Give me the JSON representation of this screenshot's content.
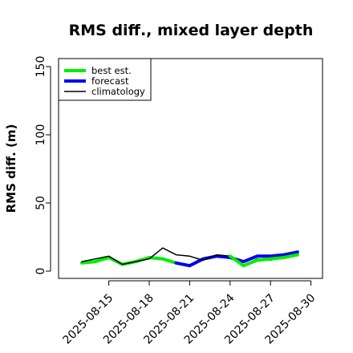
{
  "chart_data": {
    "type": "line",
    "title": "RMS diff., mixed layer depth",
    "xlabel": "",
    "ylabel": "RMS diff. (m)",
    "ylim": [
      0,
      150
    ],
    "yticks": [
      0,
      50,
      100,
      150
    ],
    "x": [
      "2025-08-13",
      "2025-08-14",
      "2025-08-15",
      "2025-08-16",
      "2025-08-17",
      "2025-08-18",
      "2025-08-19",
      "2025-08-20",
      "2025-08-21",
      "2025-08-22",
      "2025-08-23",
      "2025-08-24",
      "2025-08-25",
      "2025-08-26",
      "2025-08-27",
      "2025-08-28",
      "2025-08-29",
      "2025-08-30"
    ],
    "xticks": [
      "2025-08-15",
      "2025-08-18",
      "2025-08-21",
      "2025-08-24",
      "2025-08-27",
      "2025-08-30"
    ],
    "highlight_tick": "2025-08-21",
    "highlight_color": "#228B22",
    "legend_position": "top-left",
    "grid": false,
    "series": [
      {
        "name": "best est.",
        "color": "#00ee00",
        "width": 4,
        "values": [
          6,
          7,
          10,
          5,
          7,
          10,
          9,
          6,
          null,
          null,
          null,
          null,
          null,
          null,
          null,
          null,
          null,
          null
        ]
      },
      {
        "name": "forecast",
        "color": "#0000ee",
        "width": 4,
        "values": [
          null,
          null,
          null,
          null,
          null,
          null,
          null,
          6,
          4,
          9,
          11,
          10,
          7,
          11,
          11,
          12,
          14,
          null
        ]
      },
      {
        "name": "climatology",
        "color": "#000000",
        "width": 1.5,
        "values": [
          7,
          9,
          11,
          5,
          7,
          9,
          17,
          12,
          11,
          8,
          12,
          11,
          4,
          9,
          8,
          11,
          12,
          null
        ]
      },
      {
        "name": "best est. (verified)",
        "legend": false,
        "color": "#00ee00",
        "width": 4,
        "values": [
          null,
          null,
          null,
          null,
          null,
          null,
          null,
          null,
          null,
          null,
          null,
          11,
          4,
          8,
          9,
          10,
          12,
          null
        ]
      }
    ]
  }
}
